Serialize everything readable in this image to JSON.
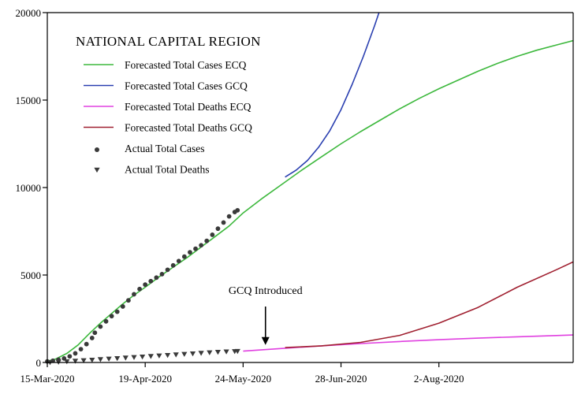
{
  "chart_data": {
    "type": "line",
    "title": "NATIONAL CAPITAL REGION",
    "xlabel": "",
    "ylabel": "",
    "xlim": [
      "2020-03-15",
      "2020-09-19"
    ],
    "ylim": [
      0,
      20000
    ],
    "x_ticks": [
      {
        "date": "2020-03-15",
        "label": "15-Mar-2020"
      },
      {
        "date": "2020-04-19",
        "label": "19-Apr-2020"
      },
      {
        "date": "2020-05-24",
        "label": "24-May-2020"
      },
      {
        "date": "2020-06-28",
        "label": "28-Jun-2020"
      },
      {
        "date": "2020-08-02",
        "label": "2-Aug-2020"
      }
    ],
    "y_ticks": [
      0,
      5000,
      10000,
      15000,
      20000
    ],
    "grid": false,
    "legend_position": "top-left",
    "series": [
      {
        "name": "Forecasted Total Cases ECQ",
        "kind": "line",
        "color": "#3db83d",
        "points": [
          [
            "2020-03-15",
            80
          ],
          [
            "2020-03-18",
            200
          ],
          [
            "2020-03-22",
            520
          ],
          [
            "2020-03-26",
            1000
          ],
          [
            "2020-03-30",
            1650
          ],
          [
            "2020-04-03",
            2250
          ],
          [
            "2020-04-07",
            2800
          ],
          [
            "2020-04-11",
            3350
          ],
          [
            "2020-04-15",
            3850
          ],
          [
            "2020-04-19",
            4300
          ],
          [
            "2020-04-24",
            4900
          ],
          [
            "2020-04-29",
            5450
          ],
          [
            "2020-05-04",
            6000
          ],
          [
            "2020-05-09",
            6600
          ],
          [
            "2020-05-14",
            7200
          ],
          [
            "2020-05-19",
            7800
          ],
          [
            "2020-05-24",
            8550
          ],
          [
            "2020-05-31",
            9400
          ],
          [
            "2020-06-07",
            10200
          ],
          [
            "2020-06-14",
            11000
          ],
          [
            "2020-06-21",
            11750
          ],
          [
            "2020-06-28",
            12500
          ],
          [
            "2020-07-05",
            13200
          ],
          [
            "2020-07-12",
            13850
          ],
          [
            "2020-07-19",
            14500
          ],
          [
            "2020-07-26",
            15100
          ],
          [
            "2020-08-02",
            15650
          ],
          [
            "2020-08-09",
            16150
          ],
          [
            "2020-08-16",
            16650
          ],
          [
            "2020-08-23",
            17100
          ],
          [
            "2020-08-30",
            17500
          ],
          [
            "2020-09-06",
            17850
          ],
          [
            "2020-09-13",
            18150
          ],
          [
            "2020-09-19",
            18400
          ]
        ]
      },
      {
        "name": "Forecasted Total Cases GCQ",
        "kind": "line",
        "color": "#2a3fb0",
        "points": [
          [
            "2020-06-08",
            10600
          ],
          [
            "2020-06-12",
            11000
          ],
          [
            "2020-06-16",
            11550
          ],
          [
            "2020-06-20",
            12300
          ],
          [
            "2020-06-24",
            13250
          ],
          [
            "2020-06-28",
            14450
          ],
          [
            "2020-07-02",
            15900
          ],
          [
            "2020-07-06",
            17500
          ],
          [
            "2020-07-10",
            19250
          ],
          [
            "2020-07-12",
            20200
          ]
        ]
      },
      {
        "name": "Forecasted Total Deaths ECQ",
        "kind": "line",
        "color": "#e040e0",
        "points": [
          [
            "2020-05-24",
            650
          ],
          [
            "2020-06-07",
            800
          ],
          [
            "2020-06-21",
            950
          ],
          [
            "2020-07-05",
            1080
          ],
          [
            "2020-07-19",
            1200
          ],
          [
            "2020-08-02",
            1300
          ],
          [
            "2020-08-16",
            1390
          ],
          [
            "2020-08-30",
            1470
          ],
          [
            "2020-09-13",
            1540
          ],
          [
            "2020-09-19",
            1570
          ]
        ]
      },
      {
        "name": "Forecasted Total Deaths GCQ",
        "kind": "line",
        "color": "#a02030",
        "points": [
          [
            "2020-06-08",
            850
          ],
          [
            "2020-06-21",
            950
          ],
          [
            "2020-07-05",
            1150
          ],
          [
            "2020-07-19",
            1550
          ],
          [
            "2020-08-02",
            2250
          ],
          [
            "2020-08-16",
            3150
          ],
          [
            "2020-08-30",
            4300
          ],
          [
            "2020-09-13",
            5300
          ],
          [
            "2020-09-19",
            5750
          ]
        ]
      },
      {
        "name": "Actual Total Cases",
        "kind": "scatter",
        "marker": "circle",
        "color": "#3a3a3a",
        "points": [
          [
            "2020-03-15",
            60
          ],
          [
            "2020-03-17",
            100
          ],
          [
            "2020-03-19",
            160
          ],
          [
            "2020-03-21",
            230
          ],
          [
            "2020-03-23",
            350
          ],
          [
            "2020-03-25",
            520
          ],
          [
            "2020-03-27",
            760
          ],
          [
            "2020-03-29",
            1050
          ],
          [
            "2020-03-31",
            1400
          ],
          [
            "2020-04-01",
            1700
          ],
          [
            "2020-04-03",
            2050
          ],
          [
            "2020-04-05",
            2350
          ],
          [
            "2020-04-07",
            2650
          ],
          [
            "2020-04-09",
            2900
          ],
          [
            "2020-04-11",
            3200
          ],
          [
            "2020-04-13",
            3550
          ],
          [
            "2020-04-15",
            3900
          ],
          [
            "2020-04-17",
            4200
          ],
          [
            "2020-04-19",
            4450
          ],
          [
            "2020-04-21",
            4650
          ],
          [
            "2020-04-23",
            4850
          ],
          [
            "2020-04-25",
            5050
          ],
          [
            "2020-04-27",
            5300
          ],
          [
            "2020-04-29",
            5550
          ],
          [
            "2020-05-01",
            5800
          ],
          [
            "2020-05-03",
            6050
          ],
          [
            "2020-05-05",
            6300
          ],
          [
            "2020-05-07",
            6500
          ],
          [
            "2020-05-09",
            6700
          ],
          [
            "2020-05-11",
            6950
          ],
          [
            "2020-05-13",
            7300
          ],
          [
            "2020-05-15",
            7650
          ],
          [
            "2020-05-17",
            8000
          ],
          [
            "2020-05-19",
            8350
          ],
          [
            "2020-05-21",
            8600
          ],
          [
            "2020-05-22",
            8700
          ]
        ]
      },
      {
        "name": "Actual Total Deaths",
        "kind": "scatter",
        "marker": "triangle-down",
        "color": "#3a3a3a",
        "points": [
          [
            "2020-03-16",
            10
          ],
          [
            "2020-03-19",
            30
          ],
          [
            "2020-03-22",
            60
          ],
          [
            "2020-03-25",
            90
          ],
          [
            "2020-03-28",
            120
          ],
          [
            "2020-03-31",
            150
          ],
          [
            "2020-04-03",
            180
          ],
          [
            "2020-04-06",
            210
          ],
          [
            "2020-04-09",
            240
          ],
          [
            "2020-04-12",
            270
          ],
          [
            "2020-04-15",
            300
          ],
          [
            "2020-04-18",
            330
          ],
          [
            "2020-04-21",
            360
          ],
          [
            "2020-04-24",
            390
          ],
          [
            "2020-04-27",
            420
          ],
          [
            "2020-04-30",
            450
          ],
          [
            "2020-05-03",
            480
          ],
          [
            "2020-05-06",
            510
          ],
          [
            "2020-05-09",
            540
          ],
          [
            "2020-05-12",
            570
          ],
          [
            "2020-05-15",
            600
          ],
          [
            "2020-05-18",
            620
          ],
          [
            "2020-05-21",
            640
          ],
          [
            "2020-05-22",
            650
          ]
        ]
      }
    ],
    "annotations": [
      {
        "text": "GCQ Introduced",
        "x": "2020-06-01",
        "arrow_to_y": 1000
      }
    ]
  }
}
